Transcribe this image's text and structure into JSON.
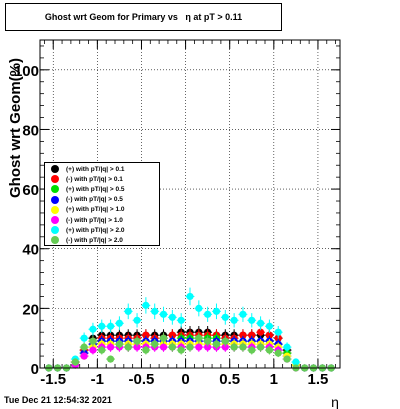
{
  "title": "Ghost wrt Geom for Primary vs   η at pT > 0.11",
  "footer": "Tue Dec 21 12:54:32 2021",
  "chart_data": {
    "type": "scatter",
    "title": "Ghost wrt Geom for Primary vs   η at pT > 0.11",
    "xlabel": "η",
    "ylabel": "Ghost wrt Geom(%)",
    "xlim": [
      -1.65,
      1.75
    ],
    "ylim": [
      0,
      110
    ],
    "xticks": [
      -1.5,
      -1,
      -0.5,
      0,
      0.5,
      1,
      1.5
    ],
    "xtick_labels": [
      "-1.5",
      "-1",
      "-0.5",
      "0",
      "0.5",
      "1",
      "1.5"
    ],
    "yticks": [
      0,
      20,
      40,
      60,
      80,
      100
    ],
    "ytick_labels": [
      "0",
      "20",
      "40",
      "60",
      "80",
      "100"
    ],
    "grid": true,
    "legend_position": "left-middle",
    "x": [
      -1.55,
      -1.45,
      -1.35,
      -1.25,
      -1.15,
      -1.05,
      -0.95,
      -0.85,
      -0.75,
      -0.65,
      -0.55,
      -0.45,
      -0.35,
      -0.25,
      -0.15,
      -0.05,
      0.05,
      0.15,
      0.25,
      0.35,
      0.45,
      0.55,
      0.65,
      0.75,
      0.85,
      0.95,
      1.05,
      1.15,
      1.25,
      1.35,
      1.45,
      1.55,
      1.65
    ],
    "series": [
      {
        "name": "(+) with pT/|q| > 0.1",
        "color": "#000000",
        "values": [
          0,
          0,
          0,
          2,
          6,
          10,
          11,
          11,
          11,
          11,
          11,
          11,
          11,
          11,
          11,
          12,
          12,
          12,
          12,
          11,
          11,
          11,
          11,
          11,
          11,
          11,
          10,
          6,
          1,
          0,
          0,
          0,
          0
        ]
      },
      {
        "name": "(-) with pT/|q| > 0.1",
        "color": "#ff0000",
        "values": [
          0,
          0,
          0,
          2,
          6,
          9,
          10,
          10,
          10,
          10,
          10,
          11,
          10,
          10,
          11,
          11,
          11,
          11,
          11,
          11,
          10,
          10,
          11,
          11,
          12,
          11,
          10,
          5,
          1,
          0,
          0,
          0,
          0
        ]
      },
      {
        "name": "(+) with pT/|q| > 0.5",
        "color": "#00dd00",
        "values": [
          0,
          0,
          0,
          1,
          5,
          8,
          9,
          9,
          9,
          9,
          9,
          9,
          9,
          9,
          9,
          10,
          10,
          10,
          10,
          10,
          9,
          9,
          9,
          9,
          9,
          9,
          8,
          5,
          1,
          0,
          0,
          0,
          0
        ]
      },
      {
        "name": "(-) with pT/|q| > 0.5",
        "color": "#0000ff",
        "values": [
          0,
          0,
          0,
          1,
          5,
          8,
          9,
          9,
          9,
          9,
          9,
          9,
          9,
          9,
          9,
          9,
          9,
          9,
          9,
          9,
          9,
          9,
          9,
          9,
          9,
          9,
          8,
          4,
          1,
          0,
          0,
          0,
          0
        ]
      },
      {
        "name": "(+) with pT/|q| > 1.0",
        "color": "#ffff00",
        "values": [
          0,
          0,
          0,
          1,
          4,
          7,
          8,
          8,
          8,
          8,
          8,
          8,
          8,
          8,
          8,
          8,
          8,
          8,
          8,
          8,
          8,
          8,
          8,
          8,
          8,
          8,
          7,
          4,
          1,
          0,
          0,
          0,
          0
        ]
      },
      {
        "name": "(-) with pT/|q| > 1.0",
        "color": "#ff00ff",
        "values": [
          0,
          0,
          0,
          1,
          4,
          6,
          7,
          7,
          7,
          7,
          7,
          7,
          7,
          7,
          7,
          7,
          7,
          7,
          7,
          7,
          7,
          7,
          7,
          7,
          7,
          7,
          6,
          3,
          0,
          0,
          0,
          0,
          0
        ]
      },
      {
        "name": "(+) with pT/|q| > 2.0",
        "color": "#00ffff",
        "values": [
          0,
          0,
          0,
          3,
          10,
          13,
          14,
          14,
          15,
          19,
          16,
          21,
          19,
          18,
          17,
          16,
          24,
          20,
          18,
          19,
          17,
          16,
          18,
          16,
          15,
          14,
          12,
          7,
          2,
          0,
          0,
          0,
          0
        ]
      },
      {
        "name": "(-) with pT/|q| > 2.0",
        "color": "#66cc55",
        "values": [
          0,
          0,
          0,
          2,
          7,
          9,
          6,
          3,
          8,
          7,
          9,
          6,
          8,
          10,
          7,
          6,
          7,
          10,
          9,
          8,
          9,
          7,
          7,
          6,
          7,
          6,
          5,
          3,
          0,
          0,
          0,
          0,
          0
        ]
      }
    ]
  }
}
